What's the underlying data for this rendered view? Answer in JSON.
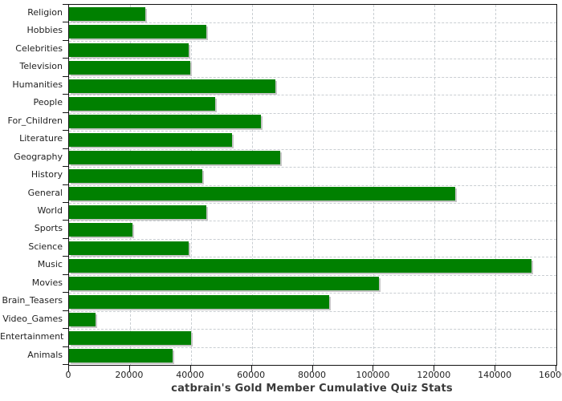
{
  "title": "catbrain's Gold Member Cumulative Quiz Stats",
  "colors": {
    "bar": "#008000",
    "bar_shadow": "#c6c6c6",
    "grid": "#c9ced2",
    "axis": "#111111",
    "text": "#222222",
    "title_text": "#3a3a3a"
  },
  "chart_data": {
    "type": "bar",
    "orientation": "horizontal",
    "title": "catbrain's Gold Member Cumulative Quiz Stats",
    "xlabel": "",
    "ylabel": "",
    "xlim": [
      0,
      160000
    ],
    "grid": true,
    "legend": false,
    "categories": [
      "Religion",
      "Hobbies",
      "Celebrities",
      "Television",
      "Humanities",
      "People",
      "For_Children",
      "Literature",
      "Geography",
      "History",
      "General",
      "World",
      "Sports",
      "Science",
      "Music",
      "Movies",
      "Brain_Teasers",
      "Video_Games",
      "Entertainment",
      "Animals"
    ],
    "values": [
      25000,
      45100,
      39400,
      39900,
      67800,
      48100,
      62900,
      53400,
      69400,
      43800,
      126700,
      45100,
      20700,
      39300,
      151800,
      101700,
      85300,
      8800,
      40000,
      33900
    ],
    "xticks": [
      0,
      20000,
      40000,
      60000,
      80000,
      100000,
      120000,
      140000,
      160000
    ],
    "xtick_labels": [
      "0",
      "20000",
      "40000",
      "60000",
      "80000",
      "100000",
      "120000",
      "140000",
      "160000"
    ]
  }
}
